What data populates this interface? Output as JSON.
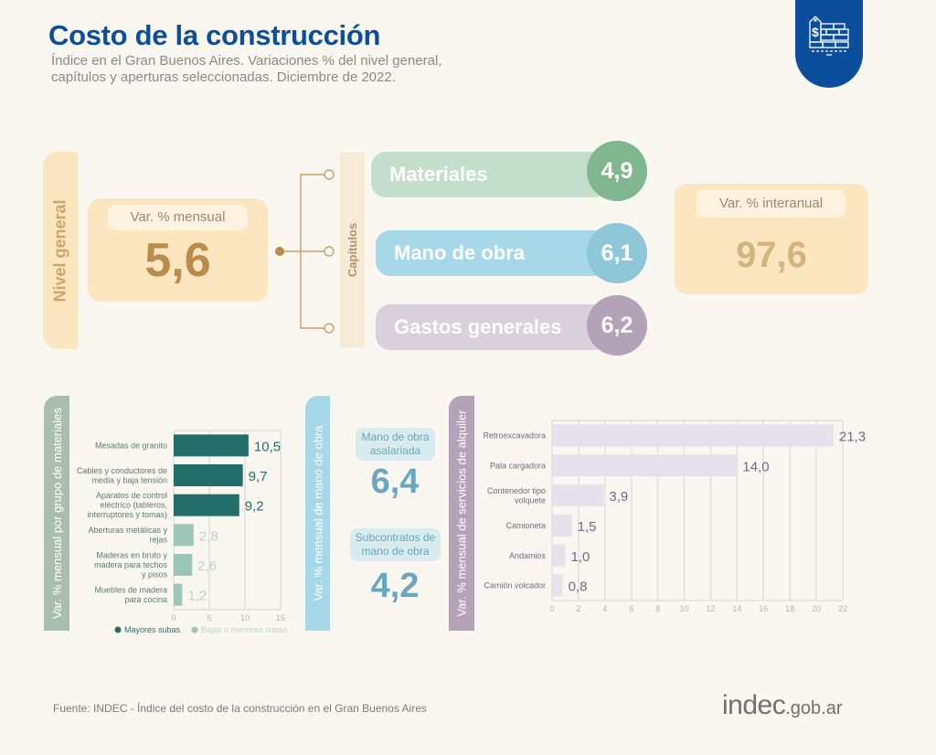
{
  "header": {
    "title": "Costo de la construcción",
    "subtitle_line1": "Índice en el Gran Buenos Aires. Variaciones % del nivel general,",
    "subtitle_line2": "capítulos y aperturas seleccionadas. Diciembre de 2022.",
    "badge_icon": "brick-wall-price-tag-icon"
  },
  "nivel_general": {
    "tab_label": "Nivel general",
    "card_label": "Var. % mensual",
    "value": "5,6"
  },
  "capitulos": {
    "tab_label": "Capítulos",
    "items": [
      {
        "label": "Materiales",
        "value": "4,9",
        "color": "#80b78e"
      },
      {
        "label": "Mano de obra",
        "value": "6,1",
        "color": "#8ec8d8"
      },
      {
        "label": "Gastos generales",
        "value": "6,2",
        "color": "#b4a3b8"
      }
    ]
  },
  "interanual": {
    "card_label": "Var. % interanual",
    "value": "97,6"
  },
  "mano_obra": {
    "tab_label": "Var. % mensual de mano de obra",
    "items": [
      {
        "label_line1": "Mano de obra",
        "label_line2": "asalariada",
        "value": "6,4"
      },
      {
        "label_line1": "Subcontratos de",
        "label_line2": "mano de obra",
        "value": "4,2"
      }
    ]
  },
  "chart_data": [
    {
      "type": "bar",
      "orientation": "horizontal",
      "tab_label": "Var. % mensual por grupo de materiales",
      "categories": [
        [
          "Mesadas de granito"
        ],
        [
          "Cables y conductores de",
          "media y baja tensión"
        ],
        [
          "Aparatos de control",
          "eléctrico (tableros,",
          "interruptores y tomas)"
        ],
        [
          "Aberturas metálicas y",
          "rejas"
        ],
        [
          "Maderas en bruto y",
          "madera para techos",
          "y pisos"
        ],
        [
          "Muebles de madera",
          "para cocina"
        ]
      ],
      "values": [
        10.5,
        9.7,
        9.2,
        2.8,
        2.6,
        1.2
      ],
      "value_labels": [
        "10,5",
        "9,7",
        "9,2",
        "2,8",
        "2,6",
        "1,2"
      ],
      "groups": [
        "mayores",
        "mayores",
        "mayores",
        "menores",
        "menores",
        "menores"
      ],
      "xlim": [
        0,
        15
      ],
      "xticks": [
        "0",
        "5",
        "10",
        "15"
      ],
      "grid": true,
      "legend": [
        {
          "label": "Mayores subas",
          "color": "#236e6b"
        },
        {
          "label": "Bajas o menores subas",
          "color": "#9ec6b8"
        }
      ],
      "legend_position": "bottom"
    },
    {
      "type": "bar",
      "orientation": "horizontal",
      "tab_label": "Var. % mensual de servicios de alquiler",
      "categories": [
        [
          "Retroexcavadora"
        ],
        [
          "Pala cargadora"
        ],
        [
          "Contenedor tipo",
          "volquete"
        ],
        [
          "Camioneta"
        ],
        [
          "Andamios"
        ],
        [
          "Camión volcador"
        ]
      ],
      "values": [
        21.3,
        14.0,
        3.9,
        1.5,
        1.0,
        0.8
      ],
      "value_labels": [
        "21,3",
        "14,0",
        "3,9",
        "1,5",
        "1,0",
        "0,8"
      ],
      "xlim": [
        0,
        22
      ],
      "xticks": [
        "0",
        "2",
        "4",
        "6",
        "8",
        "10",
        "12",
        "14",
        "16",
        "18",
        "20",
        "22"
      ],
      "grid": true,
      "bar_color": "#e6e1ea",
      "label_color": "#7a6482"
    }
  ],
  "footer": {
    "source": "Fuente: INDEC - Índice del costo de la construcción en el Gran Buenos Aires",
    "logo_main": "indec",
    "logo_suffix": ".gob.ar"
  }
}
